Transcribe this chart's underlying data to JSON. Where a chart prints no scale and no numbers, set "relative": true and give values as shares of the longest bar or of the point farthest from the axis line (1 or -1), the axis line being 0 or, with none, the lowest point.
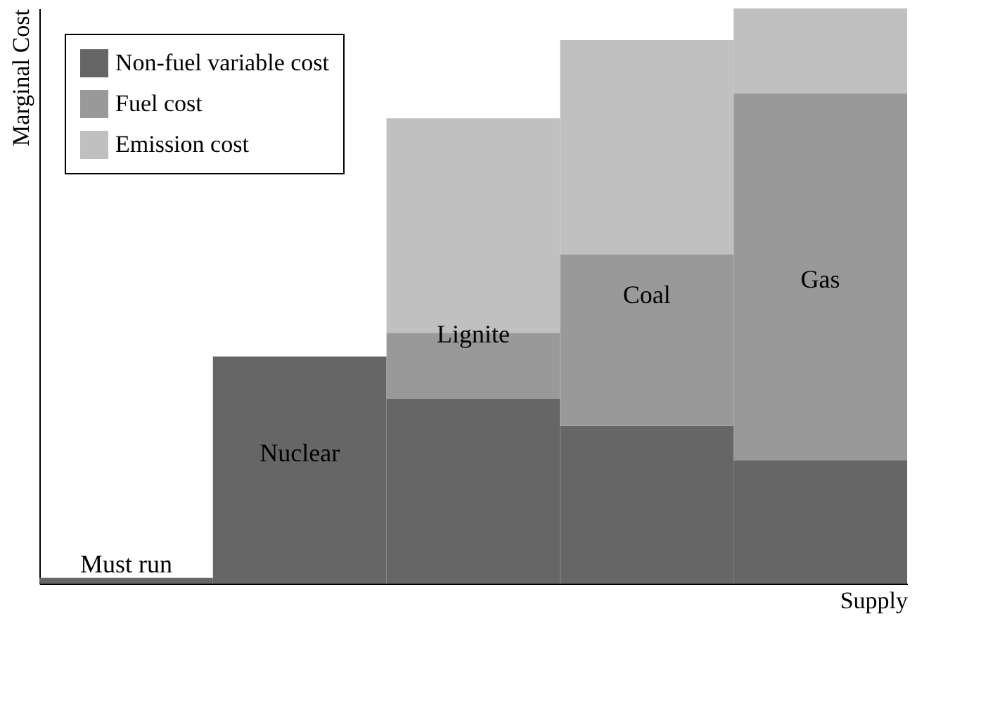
{
  "chart_data": {
    "type": "bar",
    "stacked": true,
    "relative": true,
    "xlabel": "Supply",
    "ylabel": "Marginal Cost",
    "categories": [
      "Must run",
      "Nuclear",
      "Lignite",
      "Coal",
      "Gas"
    ],
    "series": [
      {
        "name": "Non-fuel variable cost",
        "color": "#666666",
        "values": [
          0.01,
          0.395,
          0.322,
          0.274,
          0.215
        ]
      },
      {
        "name": "Fuel cost",
        "color": "#999999",
        "values": [
          0,
          0,
          0.114,
          0.298,
          0.637
        ]
      },
      {
        "name": "Emission cost",
        "color": "#c0c0c0",
        "values": [
          0,
          0,
          0.373,
          0.373,
          0.148
        ]
      }
    ],
    "legend": "top left",
    "tick_labels": false,
    "grid": false
  }
}
